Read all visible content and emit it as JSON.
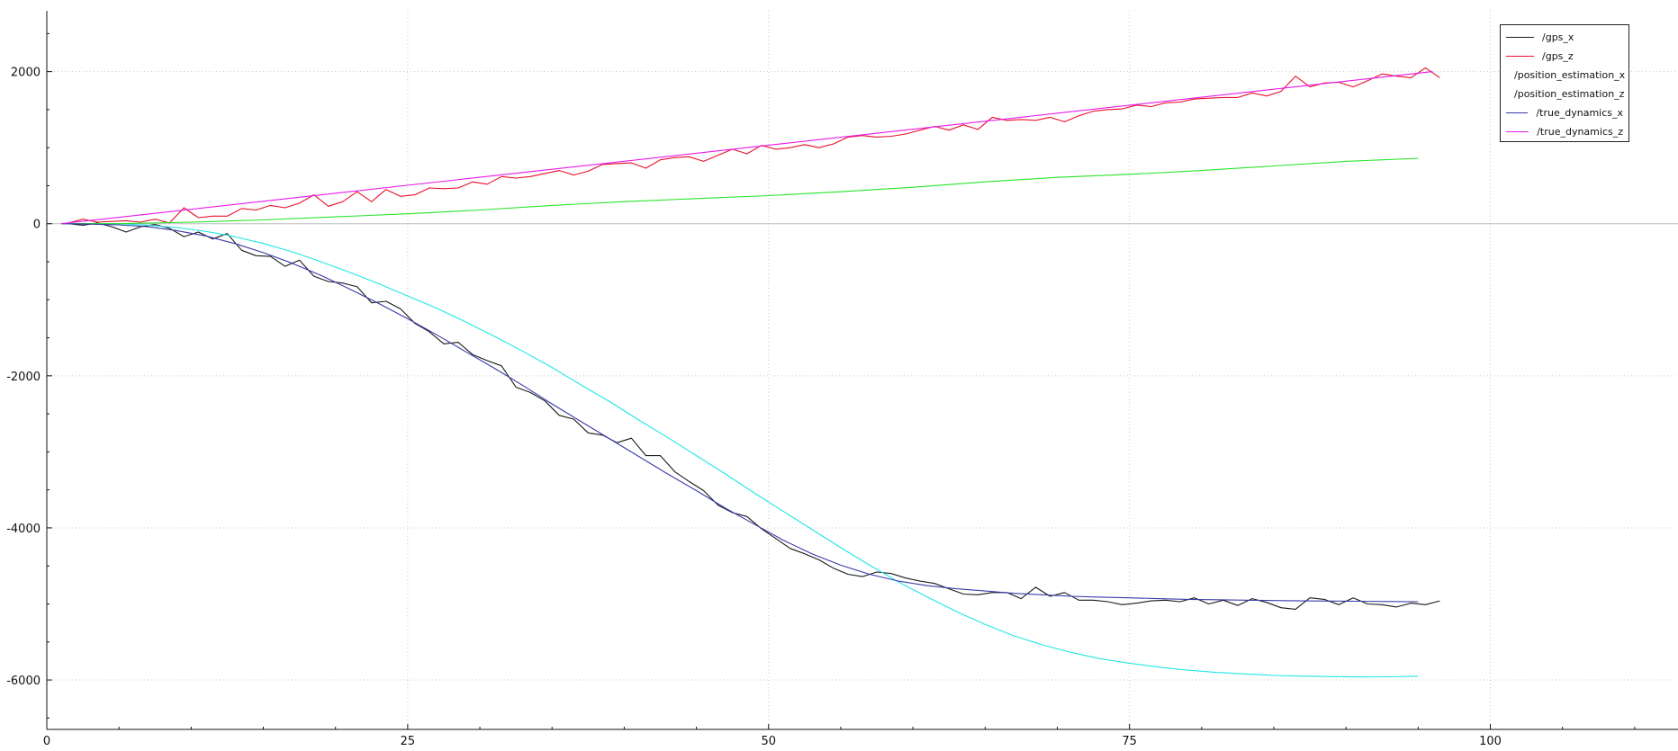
{
  "chart_data": {
    "type": "line",
    "title": "",
    "xlabel": "",
    "ylabel": "",
    "xlim": [
      0,
      113
    ],
    "ylim": [
      -6650,
      2800
    ],
    "grid": true,
    "legend_position": "top-right",
    "x_ticks": [
      0,
      25,
      50,
      75,
      100
    ],
    "x_tick_labels": [
      "0",
      "25",
      "50",
      "75",
      "100"
    ],
    "y_ticks": [
      2000,
      0,
      -2000,
      -4000,
      -6000
    ],
    "y_tick_labels": [
      "2000",
      "0",
      "-2000",
      "-4000",
      "-6000"
    ],
    "series": [
      {
        "name": "/gps_x",
        "color": "#1a1a1a",
        "x": [
          1.5,
          2.5,
          3.5,
          4.5,
          5.5,
          6.5,
          7.5,
          8.5,
          9.5,
          10.5,
          11.5,
          12.5,
          13.5,
          14.5,
          15.5,
          16.5,
          17.5,
          18.5,
          19.5,
          20.5,
          21.5,
          22.5,
          23.5,
          24.5,
          25.5,
          26.5,
          27.5,
          28.5,
          29.5,
          30.5,
          31.5,
          32.5,
          33.5,
          34.5,
          35.5,
          36.5,
          37.5,
          38.5,
          39.5,
          40.5,
          41.5,
          42.5,
          43.5,
          44.5,
          45.5,
          46.5,
          47.5,
          48.5,
          49.5,
          50.5,
          51.5,
          52.5,
          53.5,
          54.5,
          55.5,
          56.5,
          57.5,
          58.5,
          59.5,
          60.5,
          61.5,
          62.5,
          63.5,
          64.5,
          65.5,
          66.5,
          67.5,
          68.5,
          69.5,
          70.5,
          71.5,
          72.5,
          73.5,
          74.5,
          75.5,
          76.5,
          77.5,
          78.5,
          79.5,
          80.5,
          81.5,
          82.5,
          83.5,
          84.5,
          85.5,
          86.5,
          87.5,
          88.5,
          89.5,
          90.5,
          91.5,
          92.5,
          93.5,
          94.5,
          95.5,
          96.5
        ],
        "values": [
          0,
          -20,
          10,
          -40,
          -110,
          -40,
          -10,
          -60,
          -170,
          -110,
          -200,
          -130,
          -350,
          -420,
          -430,
          -560,
          -480,
          -690,
          -760,
          -780,
          -830,
          -1040,
          -1020,
          -1120,
          -1310,
          -1420,
          -1580,
          -1560,
          -1720,
          -1800,
          -1870,
          -2150,
          -2220,
          -2330,
          -2520,
          -2570,
          -2750,
          -2780,
          -2880,
          -2820,
          -3050,
          -3050,
          -3260,
          -3390,
          -3510,
          -3700,
          -3800,
          -3850,
          -4010,
          -4140,
          -4270,
          -4340,
          -4420,
          -4530,
          -4610,
          -4640,
          -4580,
          -4600,
          -4660,
          -4700,
          -4730,
          -4800,
          -4870,
          -4880,
          -4850,
          -4850,
          -4930,
          -4780,
          -4900,
          -4850,
          -4950,
          -4950,
          -4970,
          -5010,
          -4990,
          -4960,
          -4950,
          -4970,
          -4920,
          -5000,
          -4950,
          -5020,
          -4930,
          -4980,
          -5050,
          -5070,
          -4920,
          -4940,
          -5010,
          -4920,
          -5000,
          -5010,
          -5040,
          -4990,
          -5010,
          -4960
        ]
      },
      {
        "name": "/gps_z",
        "color": "#e8102a",
        "x": [
          1.5,
          2.5,
          3.5,
          4.5,
          5.5,
          6.5,
          7.5,
          8.5,
          9.5,
          10.5,
          11.5,
          12.5,
          13.5,
          14.5,
          15.5,
          16.5,
          17.5,
          18.5,
          19.5,
          20.5,
          21.5,
          22.5,
          23.5,
          24.5,
          25.5,
          26.5,
          27.5,
          28.5,
          29.5,
          30.5,
          31.5,
          32.5,
          33.5,
          34.5,
          35.5,
          36.5,
          37.5,
          38.5,
          39.5,
          40.5,
          41.5,
          42.5,
          43.5,
          44.5,
          45.5,
          46.5,
          47.5,
          48.5,
          49.5,
          50.5,
          51.5,
          52.5,
          53.5,
          54.5,
          55.5,
          56.5,
          57.5,
          58.5,
          59.5,
          60.5,
          61.5,
          62.5,
          63.5,
          64.5,
          65.5,
          66.5,
          67.5,
          68.5,
          69.5,
          70.5,
          71.5,
          72.5,
          73.5,
          74.5,
          75.5,
          76.5,
          77.5,
          78.5,
          79.5,
          80.5,
          81.5,
          82.5,
          83.5,
          84.5,
          85.5,
          86.5,
          87.5,
          88.5,
          89.5,
          90.5,
          91.5,
          92.5,
          93.5,
          94.5,
          95.5,
          96.5
        ],
        "values": [
          10,
          60,
          20,
          30,
          40,
          20,
          60,
          10,
          210,
          80,
          100,
          100,
          200,
          180,
          240,
          210,
          270,
          380,
          230,
          290,
          420,
          290,
          450,
          360,
          380,
          470,
          460,
          470,
          550,
          520,
          620,
          600,
          620,
          660,
          700,
          640,
          690,
          780,
          790,
          800,
          730,
          840,
          870,
          880,
          820,
          900,
          980,
          920,
          1030,
          980,
          1000,
          1040,
          1000,
          1050,
          1140,
          1160,
          1140,
          1150,
          1180,
          1230,
          1280,
          1230,
          1300,
          1240,
          1400,
          1360,
          1370,
          1360,
          1400,
          1340,
          1420,
          1480,
          1500,
          1510,
          1560,
          1540,
          1590,
          1600,
          1640,
          1650,
          1660,
          1660,
          1720,
          1680,
          1740,
          1940,
          1800,
          1850,
          1860,
          1800,
          1880,
          1970,
          1940,
          1920,
          2050,
          1920
        ]
      },
      {
        "name": "/position_estimation_x",
        "color": "#22e6e6",
        "x": [
          1,
          3,
          5,
          7,
          9,
          11,
          13,
          15,
          17,
          19,
          21,
          23,
          25,
          27,
          29,
          31,
          33,
          35,
          37,
          39,
          41,
          43,
          45,
          47,
          49,
          51,
          53,
          55,
          57,
          59,
          61,
          63,
          65,
          67,
          69,
          71,
          73,
          75,
          77,
          79,
          81,
          83,
          85,
          87,
          89,
          91,
          93,
          95
        ],
        "values": [
          0,
          0,
          0,
          -20,
          -50,
          -100,
          -170,
          -260,
          -370,
          -500,
          -640,
          -790,
          -950,
          -1110,
          -1290,
          -1480,
          -1680,
          -1890,
          -2120,
          -2340,
          -2580,
          -2810,
          -3050,
          -3290,
          -3540,
          -3780,
          -4020,
          -4260,
          -4490,
          -4710,
          -4910,
          -5100,
          -5270,
          -5420,
          -5540,
          -5640,
          -5720,
          -5780,
          -5830,
          -5870,
          -5900,
          -5920,
          -5940,
          -5950,
          -5955,
          -5960,
          -5958,
          -5950
        ]
      },
      {
        "name": "/position_estimation_z",
        "color": "#27e52a",
        "x": [
          1,
          5,
          10,
          15,
          20,
          25,
          30,
          35,
          40,
          45,
          50,
          55,
          60,
          65,
          70,
          75,
          80,
          85,
          90,
          95
        ],
        "values": [
          0,
          0,
          20,
          50,
          90,
          130,
          180,
          240,
          290,
          330,
          370,
          420,
          480,
          550,
          610,
          650,
          700,
          760,
          820,
          860
        ]
      },
      {
        "name": "/true_dynamics_x",
        "color": "#3a3aa8",
        "x": [
          1,
          3,
          5,
          7,
          9,
          11,
          13,
          15,
          17,
          19,
          21,
          23,
          25,
          27,
          29,
          31,
          33,
          35,
          37,
          39,
          41,
          43,
          45,
          47,
          49,
          51,
          53,
          55,
          57,
          59,
          61,
          63,
          65,
          67,
          69,
          71,
          73,
          75,
          77,
          79,
          81,
          83,
          85,
          87,
          89,
          91,
          93,
          95
        ],
        "values": [
          0,
          -5,
          -15,
          -40,
          -90,
          -160,
          -260,
          -380,
          -520,
          -680,
          -860,
          -1050,
          -1250,
          -1460,
          -1680,
          -1900,
          -2130,
          -2370,
          -2600,
          -2830,
          -3060,
          -3290,
          -3510,
          -3740,
          -3950,
          -4160,
          -4340,
          -4490,
          -4610,
          -4700,
          -4760,
          -4800,
          -4830,
          -4860,
          -4880,
          -4900,
          -4910,
          -4920,
          -4930,
          -4940,
          -4945,
          -4950,
          -4955,
          -4960,
          -4962,
          -4965,
          -4968,
          -4970
        ]
      },
      {
        "name": "/true_dynamics_z",
        "color": "#e81ae8",
        "x": [
          1,
          96
        ],
        "values": [
          0,
          2000
        ]
      }
    ]
  }
}
